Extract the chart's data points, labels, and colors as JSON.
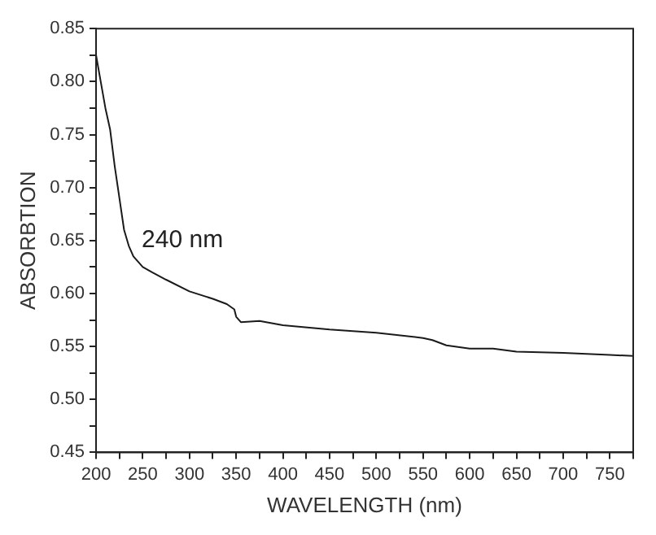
{
  "chart_data": {
    "type": "line",
    "xlabel": "WAVELENGTH (nm)",
    "ylabel": "ABSORBTION",
    "annotations": [
      "240 nm"
    ],
    "x": [
      200,
      205,
      210,
      215,
      220,
      225,
      230,
      235,
      240,
      250,
      260,
      275,
      300,
      325,
      340,
      348,
      350,
      355,
      375,
      400,
      450,
      500,
      550,
      560,
      575,
      600,
      625,
      650,
      700,
      750,
      775
    ],
    "series": [
      {
        "color": "#1a1a1a",
        "values": [
          0.825,
          0.8,
          0.775,
          0.755,
          0.72,
          0.69,
          0.66,
          0.645,
          0.635,
          0.625,
          0.62,
          0.613,
          0.602,
          0.595,
          0.59,
          0.585,
          0.578,
          0.573,
          0.574,
          0.57,
          0.566,
          0.563,
          0.558,
          0.556,
          0.551,
          0.548,
          0.548,
          0.545,
          0.544,
          0.542,
          0.541
        ]
      }
    ],
    "xlim": [
      200,
      775
    ],
    "ylim": [
      0.45,
      0.85
    ],
    "xticks": [
      200,
      {
        "value": 225,
        "label": null
      },
      250,
      {
        "value": 275,
        "label": null
      },
      300,
      {
        "value": 325,
        "label": null
      },
      350,
      {
        "value": 375,
        "label": null
      },
      400,
      {
        "value": 425,
        "label": null
      },
      450,
      {
        "value": 475,
        "label": null
      },
      500,
      {
        "value": 525,
        "label": null
      },
      550,
      {
        "value": 575,
        "label": null
      },
      600,
      {
        "value": 625,
        "label": null
      },
      650,
      {
        "value": 675,
        "label": null
      },
      700,
      {
        "value": 725,
        "label": null
      },
      750,
      {
        "value": 775,
        "label": null
      }
    ],
    "yticks": [
      {
        "value": 0.45,
        "label": "0.45"
      },
      {
        "value": 0.475,
        "label": null
      },
      {
        "value": 0.5,
        "label": "0.50"
      },
      {
        "value": 0.525,
        "label": null
      },
      {
        "value": 0.55,
        "label": "0.55"
      },
      {
        "value": 0.575,
        "label": null
      },
      {
        "value": 0.6,
        "label": "0.60"
      },
      {
        "value": 0.625,
        "label": null
      },
      {
        "value": 0.65,
        "label": "0.65"
      },
      {
        "value": 0.675,
        "label": null
      },
      {
        "value": 0.7,
        "label": "0.70"
      },
      {
        "value": 0.725,
        "label": null
      },
      {
        "value": 0.75,
        "label": "0.75"
      },
      {
        "value": 0.775,
        "label": null
      },
      {
        "value": 0.8,
        "label": "0.80"
      },
      {
        "value": 0.825,
        "label": null
      },
      {
        "value": 0.85,
        "label": "0.85"
      }
    ],
    "grid": false,
    "legend": false,
    "marker": "none",
    "line_style": "solid"
  }
}
